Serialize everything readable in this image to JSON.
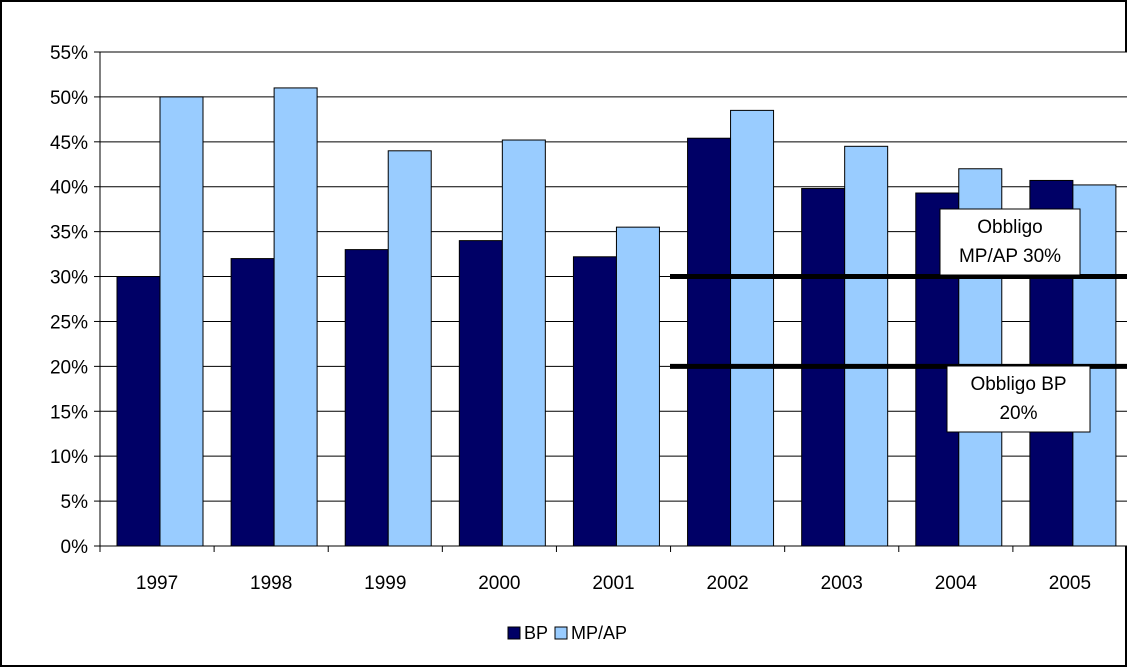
{
  "chart_data": {
    "type": "bar",
    "categories": [
      "1997",
      "1998",
      "1999",
      "2000",
      "2001",
      "2002",
      "2003",
      "2004",
      "2005"
    ],
    "series": [
      {
        "name": "BP",
        "color": "#000066",
        "values": [
          30,
          32,
          33,
          34,
          32.2,
          45.4,
          39.8,
          39.3,
          40.7
        ]
      },
      {
        "name": "MP/AP",
        "color": "#99CCFF",
        "values": [
          50,
          51,
          44,
          45.2,
          35.5,
          48.5,
          44.5,
          42,
          40.2
        ]
      }
    ],
    "ylim": [
      0,
      55
    ],
    "yticks": [
      "0%",
      "5%",
      "10%",
      "15%",
      "20%",
      "25%",
      "30%",
      "35%",
      "40%",
      "45%",
      "50%",
      "55%"
    ],
    "grid": true,
    "legend_position": "bottom",
    "annotations": [
      {
        "text_lines": [
          "Obbligo",
          "MP/AP 30%"
        ],
        "value": 30
      },
      {
        "text_lines": [
          "Obbligo BP",
          "20%"
        ],
        "value": 20
      }
    ]
  }
}
